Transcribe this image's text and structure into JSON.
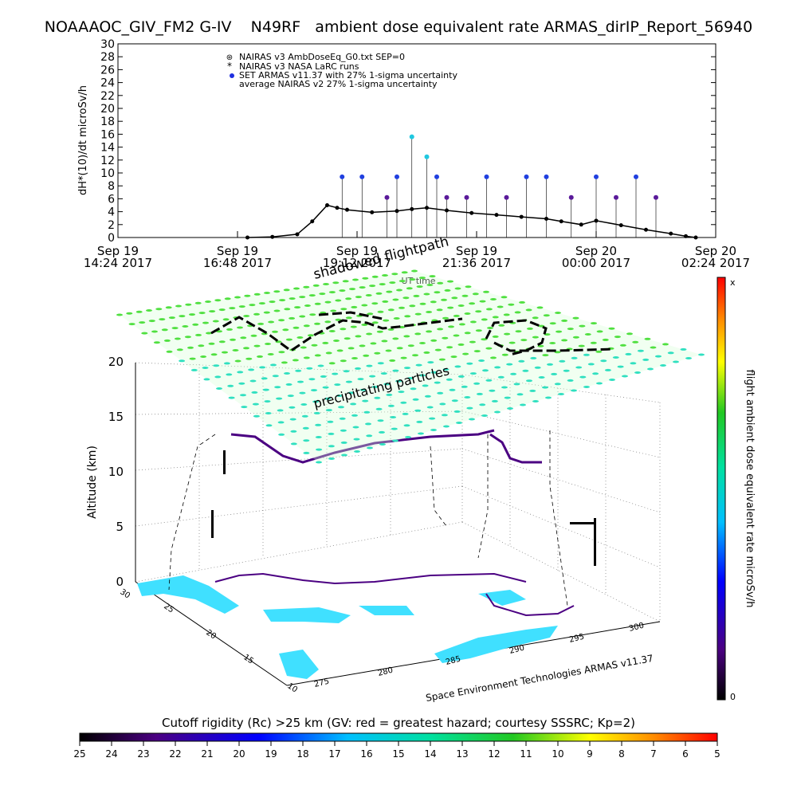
{
  "title": "NOAAAOC_GIV_FM2 G-IV    N49RF   ambient dose equivalent rate ARMAS_dirIP_Report_56940",
  "top_chart": {
    "ylabel": "dH*(10)/dt microSv/h",
    "xlabel": "UT time",
    "y_ticks": [
      "0",
      "2",
      "4",
      "6",
      "8",
      "10",
      "12",
      "14",
      "16",
      "18",
      "20",
      "22",
      "24",
      "26",
      "28",
      "30"
    ],
    "x_ticks": [
      {
        "line1": "Sep 19",
        "line2": "14:24 2017"
      },
      {
        "line1": "Sep 19",
        "line2": "16:48 2017"
      },
      {
        "line1": "Sep 19",
        "line2": "19:12 2017"
      },
      {
        "line1": "Sep 19",
        "line2": "21:36 2017"
      },
      {
        "line1": "Sep 20",
        "line2": "00:00 2017"
      },
      {
        "line1": "Sep 20",
        "line2": "02:24 2017"
      }
    ],
    "legend": [
      {
        "symbol": "⊛",
        "label": "NAIRAS v3 AmbDoseEq_G0.txt SEP=0"
      },
      {
        "symbol": "*",
        "label": "NAIRAS v3 NASA LaRC runs"
      },
      {
        "symbol": "●",
        "label": "SET ARMAS v11.37 with 27% 1-sigma uncertainty"
      },
      {
        "symbol": "",
        "label": "average NAIRAS v2 27% 1-sigma uncertainty"
      }
    ]
  },
  "globe": {
    "shadow_label": "shadowed flightpath",
    "precip_label": "precipitating particles",
    "zlabel": "Altitude (km)",
    "z_ticks": [
      "0",
      "5",
      "10",
      "15",
      "20"
    ],
    "lat_ticks": [
      "10",
      "15",
      "20",
      "25",
      "30"
    ],
    "lon_ticks": [
      "275",
      "280",
      "285",
      "290",
      "295",
      "300"
    ],
    "credit": "Space Environment Technologies ARMAS v11.37"
  },
  "colorbar_right": {
    "label": "flight ambient dose equivalent rate microSv/h",
    "top": "x",
    "bottom": "0"
  },
  "colorbar_bottom": {
    "title": "Cutoff rigidity (Rc) >25 km (GV: red = greatest hazard; courtesy SSSRC; Kp=2)",
    "ticks": [
      "25",
      "24",
      "23",
      "22",
      "21",
      "20",
      "19",
      "18",
      "17",
      "16",
      "15",
      "14",
      "13",
      "12",
      "11",
      "10",
      "9",
      "8",
      "7",
      "6",
      "5"
    ]
  },
  "chart_data": {
    "type": "scatter",
    "title": "NOAAAOC_GIV_FM2 G-IV    N49RF   ambient dose equivalent rate ARMAS_dirIP_Report_56940",
    "xlabel": "UT time",
    "ylabel": "dH*(10)/dt microSv/h",
    "ylim": [
      0,
      30
    ],
    "xlim": [
      "2017-09-19 14:24",
      "2017-09-20 02:24"
    ],
    "series": [
      {
        "name": "NAIRAS v3 AmbDoseEq_G0.txt SEP=0",
        "x_hours": [
          17.0,
          17.5,
          18.0,
          18.3,
          18.6,
          18.8,
          19.0,
          19.5,
          20.0,
          20.3,
          20.6,
          21.0,
          21.5,
          22.0,
          22.5,
          23.0,
          23.3,
          23.7,
          24.0,
          24.5,
          25.0,
          25.5,
          25.8,
          26.0
        ],
        "values": [
          0.0,
          0.1,
          0.5,
          2.5,
          5.0,
          4.6,
          4.3,
          3.9,
          4.1,
          4.4,
          4.6,
          4.2,
          3.8,
          3.5,
          3.2,
          2.9,
          2.5,
          2.0,
          2.6,
          1.9,
          1.2,
          0.6,
          0.2,
          0.0
        ]
      },
      {
        "name": "SET ARMAS v11.37 with 27% 1-sigma uncertainty",
        "x_hours": [
          18.9,
          19.3,
          19.8,
          20.0,
          20.3,
          20.6,
          20.8,
          21.0,
          21.4,
          21.8,
          22.2,
          22.6,
          23.0,
          23.5,
          24.0,
          24.4,
          24.8,
          25.2
        ],
        "values": [
          9.4,
          9.4,
          6.2,
          9.4,
          15.6,
          12.5,
          9.4,
          6.2,
          6.2,
          9.4,
          6.2,
          9.4,
          9.4,
          6.2,
          9.4,
          6.2,
          9.4,
          6.2
        ]
      }
    ]
  }
}
